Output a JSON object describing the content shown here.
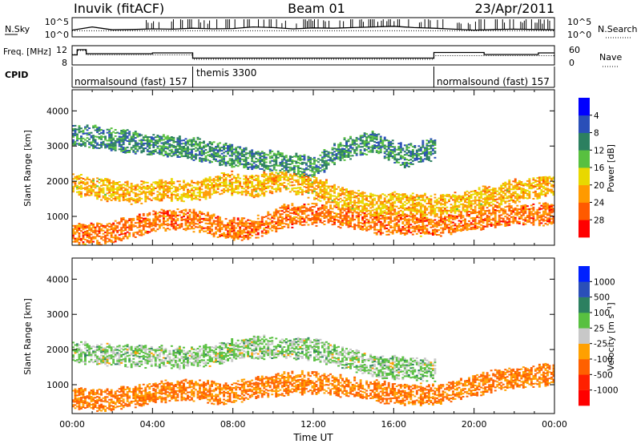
{
  "header": {
    "station": "Inuvik (fitACF)",
    "beam": "Beam 01",
    "date": "23/Apr/2011"
  },
  "chart_data": [
    {
      "type": "line",
      "panel": "noise",
      "ylabel_left": "N.Sky",
      "ylabel_right": "N.Search",
      "yticks_left": [
        "10^5",
        "10^0"
      ],
      "yticks_right": [
        "10^5",
        "10^0"
      ],
      "y_log_range": [
        0,
        5
      ],
      "series": [
        {
          "name": "N.Sky",
          "style": "solid",
          "x": [
            0,
            1,
            2,
            3,
            4,
            5,
            6,
            7,
            8,
            9,
            10,
            11,
            12,
            13,
            14,
            15,
            16,
            17,
            18,
            19,
            20,
            21,
            22,
            23,
            24
          ],
          "y": [
            1.6,
            2.6,
            1.7,
            1.8,
            2.0,
            1.9,
            2.2,
            2.0,
            2.1,
            2.6,
            2.4,
            2.0,
            2.3,
            2.2,
            2.4,
            2.6,
            2.8,
            2.4,
            2.2,
            1.9,
            1.6,
            1.8,
            1.9,
            1.8,
            1.7
          ]
        },
        {
          "name": "N.Search",
          "style": "dotted",
          "x": [
            0,
            24
          ],
          "y": [
            1.4,
            1.4
          ]
        }
      ]
    },
    {
      "type": "line",
      "panel": "frequency",
      "ylabel_left": "Freq. [MHz]",
      "ylabel_right": "Nave",
      "yticks_left": [
        "12",
        "8"
      ],
      "yticks_right": [
        "60",
        "0"
      ],
      "ylim_left": [
        8,
        12
      ],
      "series": [
        {
          "name": "Freq.",
          "style": "solid",
          "x": [
            0,
            0.25,
            0.25,
            0.7,
            0.7,
            4.0,
            4.0,
            6.0,
            6.0,
            18.0,
            18.0,
            20.5,
            20.5,
            23.2,
            23.2,
            24
          ],
          "y": [
            10.1,
            10.1,
            11.4,
            11.4,
            10.4,
            10.4,
            10.6,
            10.6,
            9.3,
            9.3,
            10.7,
            10.7,
            10.2,
            10.2,
            10.6,
            10.6
          ]
        },
        {
          "name": "Nave",
          "style": "dotted",
          "x": [
            0,
            0.25,
            0.25,
            0.7,
            0.7,
            6.0,
            6.0,
            18.0,
            18.0,
            24
          ],
          "y": [
            10.2,
            10.2,
            11.2,
            11.2,
            10.1,
            10.1,
            9.0,
            9.0,
            9.9,
            9.9
          ]
        }
      ]
    },
    {
      "type": "table",
      "panel": "cpid",
      "label": "CPID",
      "segments": [
        {
          "from": 0,
          "to": 6,
          "label": "normalsound (fast) 157"
        },
        {
          "from": 6,
          "to": 18,
          "label": "themis 3300"
        },
        {
          "from": 18,
          "to": 24,
          "label": "normalsound (fast) 157"
        }
      ]
    },
    {
      "type": "heatmap",
      "panel": "power",
      "ylabel": "Slant Range [km]",
      "yticks": [
        1000,
        2000,
        3000,
        4000
      ],
      "ylim": [
        180,
        4600
      ],
      "xlim": [
        0,
        24
      ],
      "colorbar": {
        "label": "Power [dB]",
        "ticks": [
          "4",
          "8",
          "12",
          "16",
          "20",
          "24",
          "28"
        ],
        "colors": [
          "#0000ff",
          "#2a4fb8",
          "#2c8060",
          "#58c040",
          "#e8d800",
          "#ff9a00",
          "#ff5a00",
          "#ff0000"
        ]
      },
      "bands": [
        {
          "x": [
            0,
            1.5,
            3,
            4.5,
            6,
            7.5,
            9,
            10.5,
            12,
            13.5,
            15,
            16.5,
            18,
            19.5,
            21,
            22.5,
            24
          ],
          "y": [
            500,
            480,
            700,
            900,
            880,
            650,
            620,
            980,
            1050,
            980,
            780,
            760,
            700,
            850,
            1000,
            1050,
            1050
          ],
          "level": 22
        },
        {
          "x": [
            0,
            1.5,
            3,
            4.5,
            6,
            7.5,
            9,
            10.5,
            12,
            13.5,
            15,
            16.5,
            18,
            19.5,
            21,
            22.5,
            24
          ],
          "y": [
            1900,
            1750,
            1650,
            1750,
            1700,
            1950,
            1850,
            2000,
            1800,
            1500,
            1300,
            1350,
            1300,
            1400,
            1600,
            1750,
            1900
          ],
          "level": 18
        },
        {
          "x": [
            0,
            3,
            6,
            9,
            10.5,
            12,
            13.5,
            15,
            16.5,
            18
          ],
          "y": [
            3300,
            3100,
            2900,
            2600,
            2500,
            2400,
            2900,
            3100,
            2700,
            2900
          ],
          "level": 8
        }
      ]
    },
    {
      "type": "heatmap",
      "panel": "velocity",
      "ylabel": "Slant Range [km]",
      "xlabel": "Time UT",
      "xticks": [
        "00:00",
        "04:00",
        "08:00",
        "12:00",
        "16:00",
        "20:00",
        "00:00"
      ],
      "yticks": [
        1000,
        2000,
        3000,
        4000
      ],
      "ylim": [
        180,
        4600
      ],
      "xlim": [
        0,
        24
      ],
      "colorbar": {
        "label": "Velocity [m s⁻¹]",
        "ticks": [
          "1000",
          "500",
          "100",
          "25",
          "-25",
          "-100",
          "-500",
          "-1000"
        ],
        "colors": [
          "#0020ff",
          "#2a4fb8",
          "#2c8060",
          "#58c040",
          "#c8c8c8",
          "#ffa000",
          "#ff6000",
          "#ff2000",
          "#ff0000"
        ]
      },
      "bands": [
        {
          "x": [
            0,
            1.5,
            3,
            4.5,
            6,
            7.5,
            9,
            10.5,
            12,
            13.5,
            15,
            16.5,
            18,
            19.5,
            21,
            22.5,
            24
          ],
          "y": [
            600,
            550,
            650,
            800,
            850,
            700,
            900,
            1000,
            1050,
            950,
            800,
            700,
            700,
            900,
            1100,
            1200,
            1300
          ],
          "level": -150
        },
        {
          "x": [
            0,
            3,
            6,
            9,
            12,
            15,
            18
          ],
          "y": [
            1900,
            1800,
            1750,
            2050,
            2000,
            1500,
            1400
          ],
          "level": 0
        }
      ]
    }
  ]
}
